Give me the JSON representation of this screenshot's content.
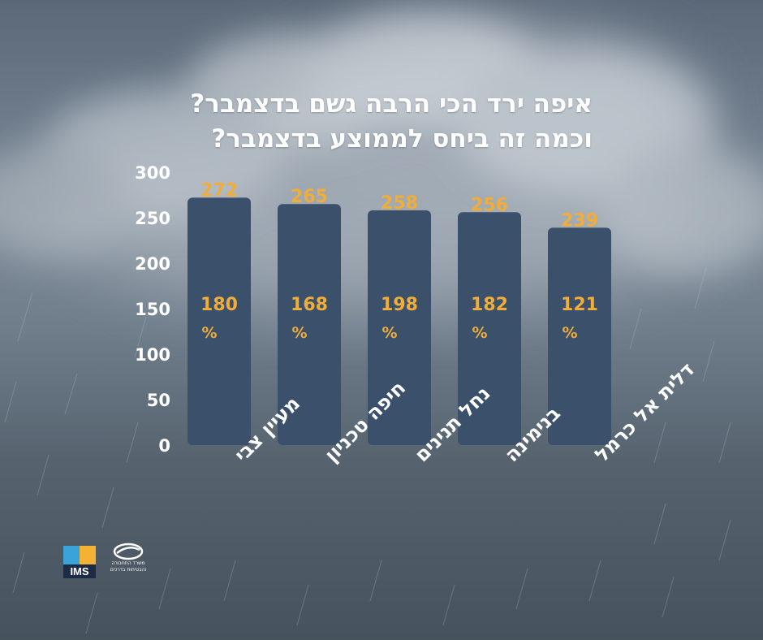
{
  "title": {
    "line1": "איפה ירד הכי הרבה גשם בדצמבר?",
    "line2": "וכמה זה ביחס לממוצע בדצמבר?"
  },
  "colors": {
    "bar": "#3a506b",
    "value_label": "#f0ad3a",
    "axis_text": "#ffffff"
  },
  "chart_data": {
    "type": "bar",
    "categories": [
      "מעיין צבי",
      "חיפה טכניון",
      "נחל תנינים",
      "בנימינה",
      "דלית אל כרמל"
    ],
    "values": [
      272,
      265,
      258,
      256,
      239
    ],
    "percent_of_average": [
      "180",
      "168",
      "198",
      "182",
      "121"
    ],
    "percent_symbol": "%",
    "yticks": [
      "0",
      "50",
      "100",
      "150",
      "200",
      "250",
      "300"
    ],
    "ylim": [
      0,
      300
    ],
    "grid": false,
    "legend": "none"
  },
  "logos": {
    "ims_text": "IMS",
    "ministry_text": "משרד התחבורה והבטיחות בדרכים"
  }
}
